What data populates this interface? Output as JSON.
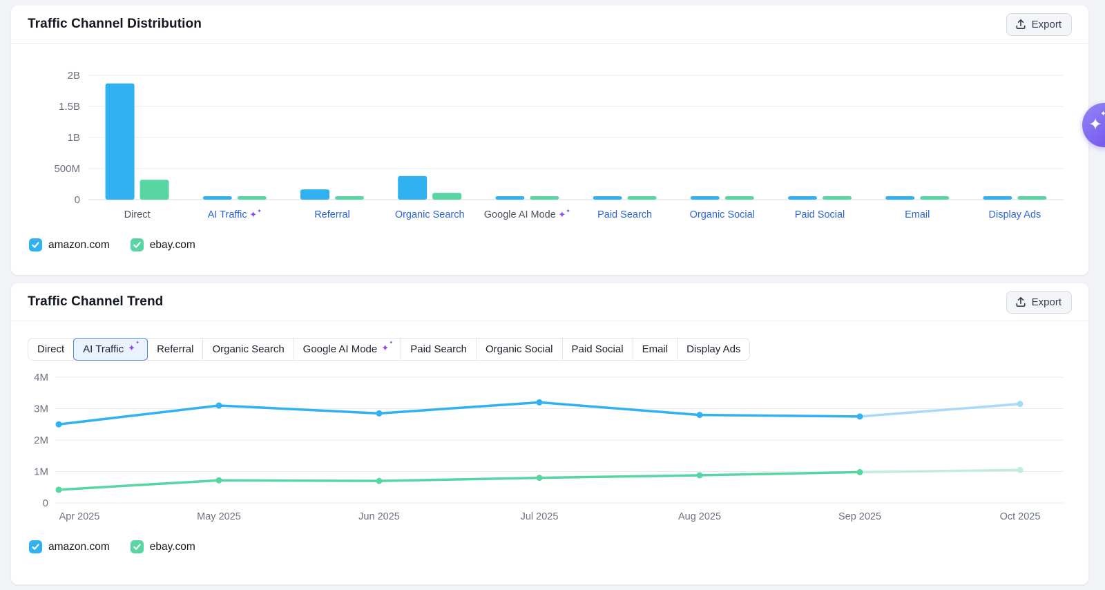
{
  "distribution_panel": {
    "title": "Traffic Channel Distribution",
    "export_button": {
      "label": "Export"
    },
    "chart": {
      "type": "bar",
      "y_ticks": [
        {
          "label": "2B",
          "value_millions": 2000
        },
        {
          "label": "1.5B",
          "value_millions": 1500
        },
        {
          "label": "1B",
          "value_millions": 1000
        },
        {
          "label": "500M",
          "value_millions": 500
        },
        {
          "label": "0",
          "value_millions": 0
        }
      ],
      "ymax_millions": 2000,
      "categories": [
        {
          "label": "Direct",
          "style": "plain",
          "sparkle": false
        },
        {
          "label": "AI Traffic",
          "style": "link",
          "sparkle": true
        },
        {
          "label": "Referral",
          "style": "link",
          "sparkle": false
        },
        {
          "label": "Organic Search",
          "style": "link",
          "sparkle": false
        },
        {
          "label": "Google AI Mode",
          "style": "plain",
          "sparkle": true
        },
        {
          "label": "Paid Search",
          "style": "link",
          "sparkle": false
        },
        {
          "label": "Organic Social",
          "style": "link",
          "sparkle": false
        },
        {
          "label": "Paid Social",
          "style": "link",
          "sparkle": false
        },
        {
          "label": "Email",
          "style": "link",
          "sparkle": false
        },
        {
          "label": "Display Ads",
          "style": "link",
          "sparkle": false
        }
      ],
      "series": [
        {
          "name": "amazon.com",
          "color": "#2FB1F2",
          "values_millions": [
            1870,
            20,
            165,
            380,
            15,
            15,
            40,
            15,
            12,
            10
          ]
        },
        {
          "name": "ebay.com",
          "color": "#57D6A3",
          "values_millions": [
            320,
            22,
            30,
            110,
            20,
            25,
            25,
            15,
            15,
            12
          ]
        }
      ]
    },
    "legend": [
      {
        "label": "amazon.com",
        "color": "#2FB1F2"
      },
      {
        "label": "ebay.com",
        "color": "#57D6A3"
      }
    ]
  },
  "trend_panel": {
    "title": "Traffic Channel Trend",
    "export_button": {
      "label": "Export"
    },
    "tabs": [
      {
        "label": "Direct",
        "sparkle": false,
        "selected": false
      },
      {
        "label": "AI Traffic",
        "sparkle": true,
        "selected": true
      },
      {
        "label": "Referral",
        "sparkle": false,
        "selected": false
      },
      {
        "label": "Organic Search",
        "sparkle": false,
        "selected": false
      },
      {
        "label": "Google AI Mode",
        "sparkle": true,
        "selected": false
      },
      {
        "label": "Paid Search",
        "sparkle": false,
        "selected": false
      },
      {
        "label": "Organic Social",
        "sparkle": false,
        "selected": false
      },
      {
        "label": "Paid Social",
        "sparkle": false,
        "selected": false
      },
      {
        "label": "Email",
        "sparkle": false,
        "selected": false
      },
      {
        "label": "Display Ads",
        "sparkle": false,
        "selected": false
      }
    ],
    "chart": {
      "type": "line",
      "x_labels": [
        "Apr 2025",
        "May 2025",
        "Jun 2025",
        "Jul 2025",
        "Aug 2025",
        "Sep 2025",
        "Oct 2025"
      ],
      "y_ticks": [
        {
          "label": "4M",
          "value_millions": 4
        },
        {
          "label": "3M",
          "value_millions": 3
        },
        {
          "label": "2M",
          "value_millions": 2
        },
        {
          "label": "1M",
          "value_millions": 1
        },
        {
          "label": "0",
          "value_millions": 0
        }
      ],
      "ymax_millions": 4,
      "series": [
        {
          "name": "amazon.com",
          "color": "#2FB1F2",
          "forecast_color": "#A9D9F8",
          "values_millions": [
            2.5,
            3.1,
            2.85,
            3.2,
            2.8,
            2.75,
            3.15
          ],
          "forecast_from_index": 5
        },
        {
          "name": "ebay.com",
          "color": "#57D6A3",
          "forecast_color": "#C3EDDA",
          "values_millions": [
            0.42,
            0.72,
            0.7,
            0.8,
            0.88,
            0.98,
            1.05
          ],
          "forecast_from_index": 5
        }
      ]
    },
    "legend": [
      {
        "label": "amazon.com",
        "color": "#2FB1F2"
      },
      {
        "label": "ebay.com",
        "color": "#57D6A3"
      }
    ]
  },
  "colors": {
    "link": "#2A64D9",
    "plain_label": "#4B505C",
    "tick": "#6A707E",
    "gridline": "#E9EBEF",
    "zeroline": "#D8DBE1",
    "sparkle": "#8B4FE8"
  },
  "chart_data": [
    {
      "type": "bar",
      "title": "Traffic Channel Distribution",
      "categories": [
        "Direct",
        "AI Traffic",
        "Referral",
        "Organic Search",
        "Google AI Mode",
        "Paid Search",
        "Organic Social",
        "Paid Social",
        "Email",
        "Display Ads"
      ],
      "series": [
        {
          "name": "amazon.com",
          "values": [
            1870000000,
            20000000,
            165000000,
            380000000,
            15000000,
            15000000,
            40000000,
            15000000,
            12000000,
            10000000
          ]
        },
        {
          "name": "ebay.com",
          "values": [
            320000000,
            22000000,
            30000000,
            110000000,
            20000000,
            25000000,
            25000000,
            15000000,
            15000000,
            12000000
          ]
        }
      ],
      "ylabel": "",
      "ylim": [
        0,
        2000000000
      ],
      "grid": true,
      "legend_position": "bottom-left"
    },
    {
      "type": "line",
      "title": "Traffic Channel Trend (AI Traffic)",
      "x": [
        "Apr 2025",
        "May 2025",
        "Jun 2025",
        "Jul 2025",
        "Aug 2025",
        "Sep 2025",
        "Oct 2025"
      ],
      "series": [
        {
          "name": "amazon.com",
          "values": [
            2500000,
            3100000,
            2850000,
            3200000,
            2800000,
            2750000,
            3150000
          ]
        },
        {
          "name": "ebay.com",
          "values": [
            420000,
            720000,
            700000,
            800000,
            880000,
            980000,
            1050000
          ]
        }
      ],
      "note_last_point": "Oct 2025 segment drawn in lighter color (projection)",
      "ylabel": "",
      "ylim": [
        0,
        4000000
      ],
      "grid": true,
      "legend_position": "bottom-left"
    }
  ]
}
